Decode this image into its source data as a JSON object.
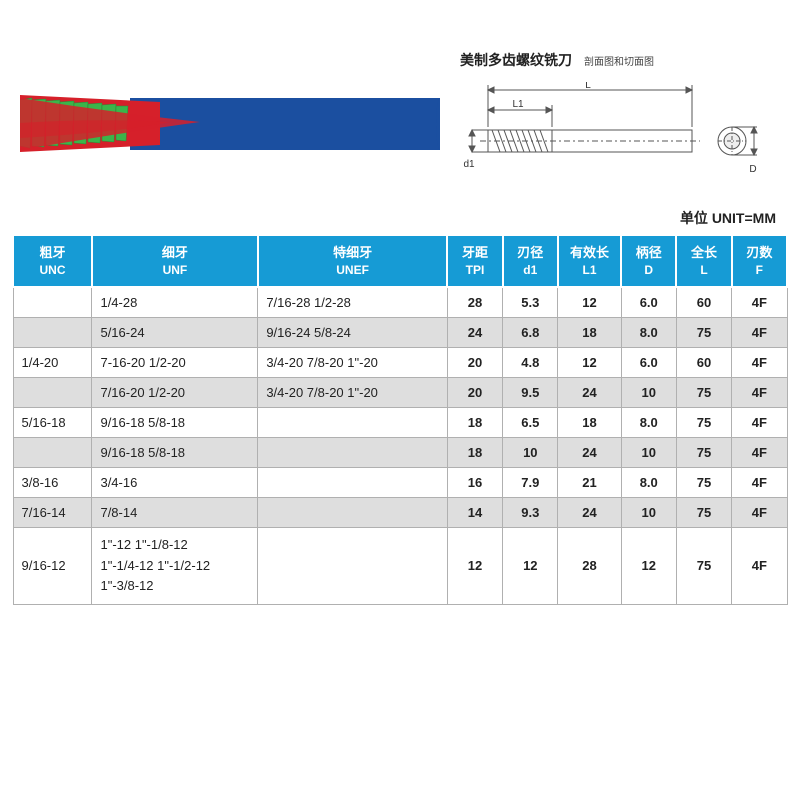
{
  "colors": {
    "header_bg": "#169bd5",
    "header_text": "#ffffff",
    "row_alt_bg": "#dedede",
    "row_bg": "#ffffff",
    "border": "#b0b0b0",
    "tool_shank": "#1b4fa0",
    "tool_flute_red": "#d6202a",
    "tool_flute_green": "#3bb54a",
    "drawing_line": "#555555"
  },
  "diagram": {
    "title": "美制多齿螺纹铣刀",
    "subtitle": "剖面图和切面图",
    "labels": {
      "L": "L",
      "L1": "L1",
      "d1": "d1",
      "D": "D"
    }
  },
  "unit_label": "单位 UNIT=MM",
  "table": {
    "headers": [
      {
        "zh": "粗牙",
        "en": "UNC"
      },
      {
        "zh": "细牙",
        "en": "UNF"
      },
      {
        "zh": "特细牙",
        "en": "UNEF"
      },
      {
        "zh": "牙距",
        "en": "TPI"
      },
      {
        "zh": "刃径",
        "en": "d1"
      },
      {
        "zh": "有效长",
        "en": "L1"
      },
      {
        "zh": "柄径",
        "en": "D"
      },
      {
        "zh": "全长",
        "en": "L"
      },
      {
        "zh": "刃数",
        "en": "F"
      }
    ],
    "rows": [
      {
        "unc": "",
        "unf": "1/4-28",
        "unef": "7/16-28   1/2-28",
        "tpi": "28",
        "d1": "5.3",
        "l1": "12",
        "d": "6.0",
        "l": "60",
        "f": "4F",
        "alt": false
      },
      {
        "unc": "",
        "unf": "5/16-24",
        "unef": "9/16-24   5/8-24",
        "tpi": "24",
        "d1": "6.8",
        "l1": "18",
        "d": "8.0",
        "l": "75",
        "f": "4F",
        "alt": true
      },
      {
        "unc": "1/4-20",
        "unf": "7-16-20   1/2-20",
        "unef": "3/4-20   7/8-20   1\"-20",
        "tpi": "20",
        "d1": "4.8",
        "l1": "12",
        "d": "6.0",
        "l": "60",
        "f": "4F",
        "alt": false
      },
      {
        "unc": "",
        "unf": "7/16-20   1/2-20",
        "unef": "3/4-20   7/8-20   1\"-20",
        "tpi": "20",
        "d1": "9.5",
        "l1": "24",
        "d": "10",
        "l": "75",
        "f": "4F",
        "alt": true
      },
      {
        "unc": "5/16-18",
        "unf": "9/16-18   5/8-18",
        "unef": "",
        "tpi": "18",
        "d1": "6.5",
        "l1": "18",
        "d": "8.0",
        "l": "75",
        "f": "4F",
        "alt": false
      },
      {
        "unc": "",
        "unf": "9/16-18   5/8-18",
        "unef": "",
        "tpi": "18",
        "d1": "10",
        "l1": "24",
        "d": "10",
        "l": "75",
        "f": "4F",
        "alt": true
      },
      {
        "unc": "3/8-16",
        "unf": "3/4-16",
        "unef": "",
        "tpi": "16",
        "d1": "7.9",
        "l1": "21",
        "d": "8.0",
        "l": "75",
        "f": "4F",
        "alt": false
      },
      {
        "unc": "7/16-14",
        "unf": "7/8-14",
        "unef": "",
        "tpi": "14",
        "d1": "9.3",
        "l1": "24",
        "d": "10",
        "l": "75",
        "f": "4F",
        "alt": true
      },
      {
        "unc": "9/16-12",
        "unf": "1\"-12   1\"-1/8-12\n1\"-1/4-12   1\"-1/2-12\n1\"-3/8-12",
        "unef": "",
        "tpi": "12",
        "d1": "12",
        "l1": "28",
        "d": "12",
        "l": "75",
        "f": "4F",
        "alt": false,
        "multiline": true
      }
    ]
  }
}
